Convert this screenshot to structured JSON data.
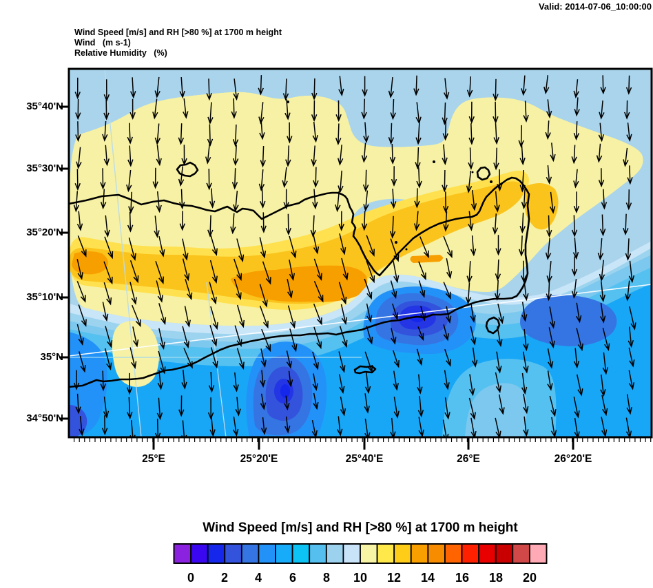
{
  "validity_label": "Valid: 2014-07-06_10:00:00",
  "header_lines": [
    "Wind Speed [m/s] and RH [>80 %] at 1700 m height",
    "Wind   (m s-1)",
    "Relative Humidity   (%)"
  ],
  "chart_data": {
    "type": "heatmap",
    "subtype": "filled-contour map with wind vector arrows over coastline (eastern Crete)",
    "title": "Wind Speed [m/s] and RH [>80 %] at 1700 m height",
    "valid_time": "Valid: 2014-07-06_10:00:00",
    "variables": [
      "Wind   (m s-1)",
      "Relative Humidity   (%)"
    ],
    "level": "1700 m height",
    "x_axis": {
      "ticks": [
        "25°E",
        "25°20'E",
        "25°40'E",
        "26°E",
        "26°20'E"
      ]
    },
    "y_axis": {
      "ticks": [
        "35°40'N",
        "35°30'N",
        "35°20'N",
        "35°10'N",
        "35°N",
        "34°50'N"
      ]
    },
    "colorbar": {
      "title": "Wind Speed [m/s] and RH [>80 %] at 1700 m height",
      "labels": [
        "0",
        "2",
        "4",
        "6",
        "8",
        "10",
        "12",
        "14",
        "16",
        "18",
        "20"
      ],
      "units": "m/s",
      "cell_colors": [
        "#8A22E0",
        "#3A07F0",
        "#1527EA",
        "#3353DC",
        "#3575E3",
        "#2292F8",
        "#16ACFA",
        "#0DC3F5",
        "#55C0F0",
        "#9CD2EE",
        "#C9E4F8",
        "#F8F4A6",
        "#FFE84A",
        "#FFCC18",
        "#FA9F00",
        "#F88C00",
        "#FF6400",
        "#FF2000",
        "#E80000",
        "#C80000",
        "#D04848",
        "#FFAAB4"
      ]
    },
    "wind_arrows": {
      "color": "#000000",
      "general_direction": "northerly (arrows point south, tilting south-southeast over the island band)"
    },
    "map_palette": {
      "base": "#A9D4EC",
      "pale_yellow": "#F6F1A4",
      "yellow": "#FFE14F",
      "gold": "#FAC41C",
      "orange": "#F89F00",
      "blue_1": "#C9E5F8",
      "blue_2": "#9CD3EE",
      "blue_3": "#7CC8EF",
      "blue_4": "#55C1F0",
      "blue_5": "#18A7F7",
      "blue_6": "#2292F8",
      "blue_7": "#3575E3",
      "blue_8": "#3353DC",
      "blue_9": "#2335E5",
      "blue_10": "#1527EA",
      "coastline": "#000000",
      "graticule": "#B9DBEC",
      "parallel_35N": "#A4DAF0",
      "cross_line": "#FCFEFF"
    }
  }
}
